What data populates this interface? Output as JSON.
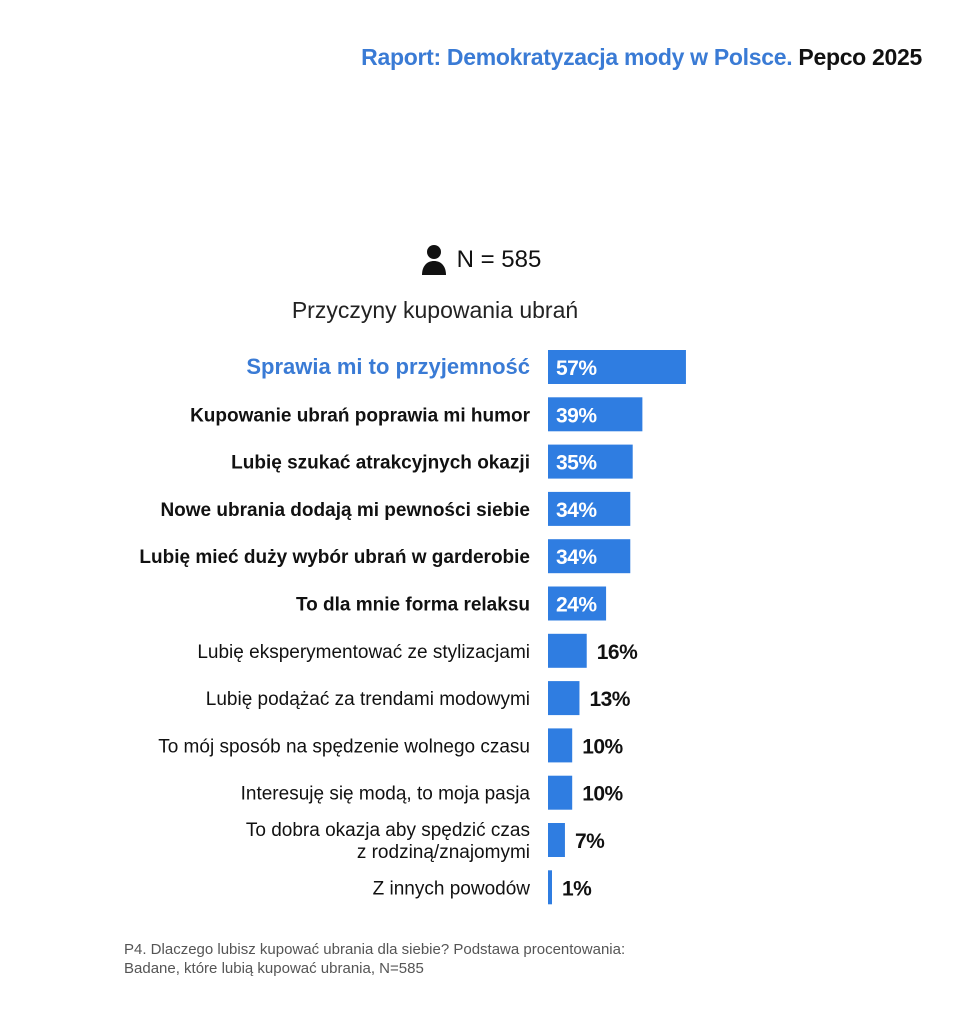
{
  "header": {
    "report_title": "Raport: Demokratyzacja mody w Polsce.",
    "brand_year": "Pepco 2025"
  },
  "sample": {
    "label": "N = 585"
  },
  "chart_data": {
    "type": "bar",
    "orientation": "horizontal",
    "title": "Przyczyny kupowania ubrań",
    "categories": [
      "Sprawia mi to przyjemność",
      "Kupowanie ubrań poprawia mi humor",
      "Lubię szukać atrakcyjnych okazji",
      "Nowe ubrania dodają mi pewności siebie",
      "Lubię mieć duży wybór ubrań w garderobie",
      "To dla mnie forma relaksu",
      "Lubię eksperymentować ze stylizacjami",
      "Lubię podążać za trendami modowymi",
      "To mój sposób na spędzenie wolnego czasu",
      "Interesuję się modą, to moja pasja",
      "To dobra okazja aby spędzić czas z rodziną/znajomymi",
      "Z innych powodów"
    ],
    "label_lines": [
      [
        "Sprawia mi to przyjemność"
      ],
      [
        "Kupowanie ubrań poprawia mi humor"
      ],
      [
        "Lubię szukać atrakcyjnych okazji"
      ],
      [
        "Nowe ubrania dodają mi pewności siebie"
      ],
      [
        "Lubię mieć duży wybór ubrań w garderobie"
      ],
      [
        "To dla mnie forma relaksu"
      ],
      [
        "Lubię eksperymentować ze stylizacjami"
      ],
      [
        "Lubię podążać za trendami modowymi"
      ],
      [
        "To mój sposób na spędzenie wolnego czasu"
      ],
      [
        "Interesuję się modą, to moja pasja"
      ],
      [
        "To dobra okazja aby spędzić czas",
        "z rodziną/znajomymi"
      ],
      [
        "Z innych powodów"
      ]
    ],
    "values": [
      57,
      39,
      35,
      34,
      34,
      24,
      16,
      13,
      10,
      10,
      7,
      1
    ],
    "value_labels": [
      "57%",
      "39%",
      "35%",
      "34%",
      "34%",
      "24%",
      "16%",
      "13%",
      "10%",
      "10%",
      "7%",
      "1%"
    ],
    "label_styles": [
      "highlight",
      "bold",
      "bold",
      "bold",
      "bold",
      "bold",
      "regular",
      "regular",
      "regular",
      "regular",
      "regular",
      "regular"
    ],
    "bar_color": "#2f7de1",
    "highlight_color": "#3a7bd5"
  },
  "footnote": {
    "line1": "P4. Dlaczego lubisz kupować ubrania dla siebie? Podstawa procentowania:",
    "line2": "Badane, które lubią kupować ubrania, N=585"
  }
}
